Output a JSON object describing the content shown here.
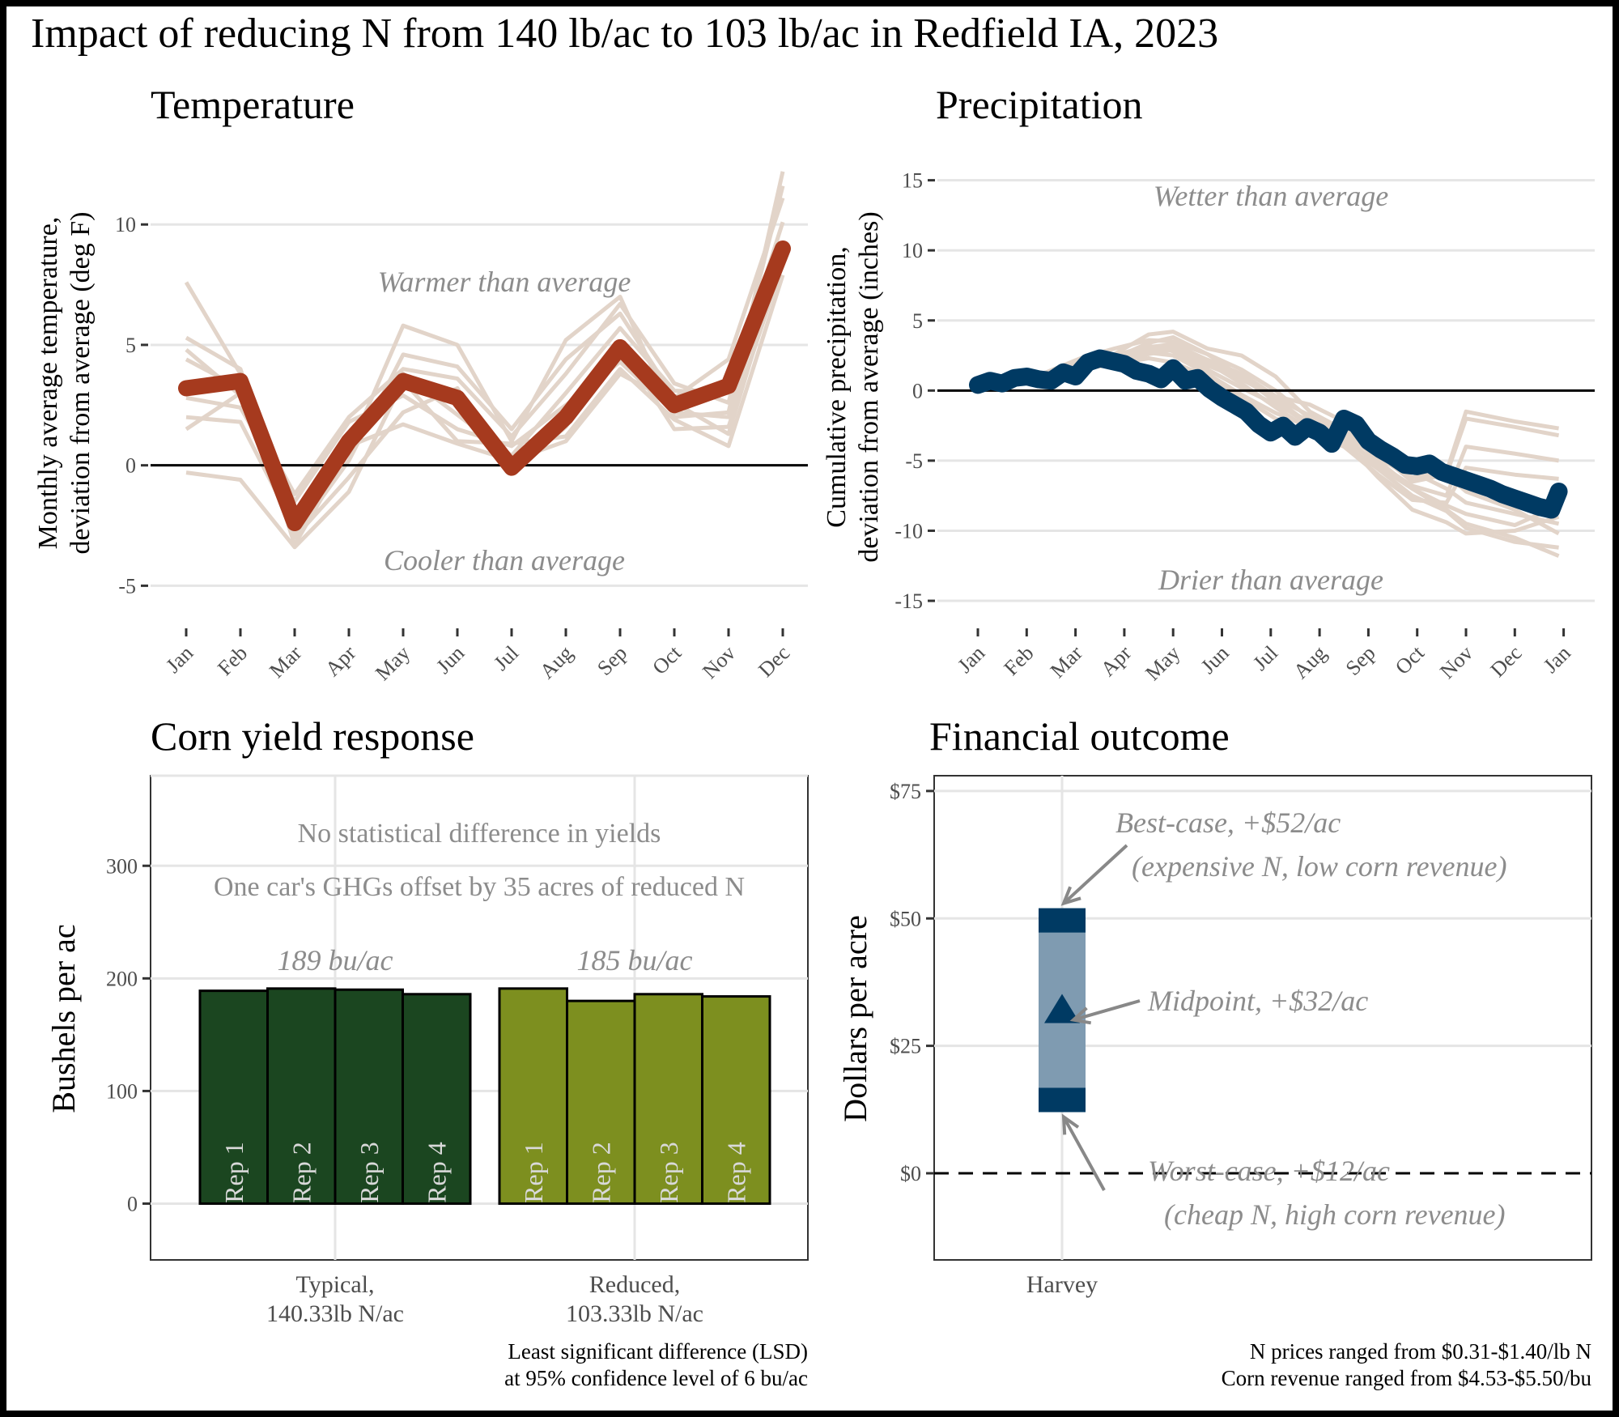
{
  "title": "Impact of reducing N from 140 lb/ac to 103 lb/ac in Redfield IA, 2023",
  "colors": {
    "temp_main": "#a63a1e",
    "historical": "#e2d4c9",
    "precip_main": "#003a63",
    "typical_bar": "#1b4620",
    "reduced_bar": "#7d8f1f",
    "range_band": "#7f9bb1",
    "range_ends": "#003a63",
    "annotation": "#8c8c8c"
  },
  "chart_data": [
    {
      "type": "line",
      "title": "Temperature",
      "ylabel_line1": "Monthly average temperature,",
      "ylabel_line2": "deviation from average (deg F)",
      "xlabel": "",
      "categories": [
        "Jan",
        "Feb",
        "Mar",
        "Apr",
        "May",
        "Jun",
        "Jul",
        "Aug",
        "Sep",
        "Oct",
        "Nov",
        "Dec"
      ],
      "ylim": [
        -6.5,
        13
      ],
      "yticks": [
        -5,
        0,
        5,
        10
      ],
      "annotations": {
        "upper": "Warmer than average",
        "lower": "Cooler than average"
      },
      "series": [
        {
          "values": [
            3.2,
            3.5,
            -2.4,
            1.0,
            3.5,
            2.8,
            -0.1,
            2.0,
            4.9,
            2.5,
            3.3,
            9.0
          ]
        }
      ],
      "historical": [
        [
          7.6,
          3.8,
          -3.3,
          0.6,
          5.8,
          5.0,
          1.0,
          5.2,
          7.0,
          2.0,
          2.2,
          12.2
        ],
        [
          5.3,
          4.0,
          -2.9,
          0.2,
          4.6,
          4.1,
          1.5,
          4.4,
          6.3,
          2.8,
          4.4,
          11.1
        ],
        [
          4.4,
          3.2,
          -2.0,
          1.3,
          3.8,
          2.1,
          0.4,
          3.0,
          5.7,
          3.1,
          3.0,
          10.1
        ],
        [
          2.8,
          2.4,
          -1.5,
          1.8,
          2.9,
          1.5,
          0.8,
          2.5,
          4.3,
          2.2,
          2.0,
          9.3
        ],
        [
          1.5,
          3.0,
          -3.0,
          -0.5,
          2.2,
          3.2,
          -0.3,
          1.6,
          5.0,
          1.5,
          1.6,
          8.4
        ],
        [
          -0.3,
          -0.6,
          -3.4,
          -1.1,
          3.5,
          1.0,
          0.9,
          1.2,
          4.0,
          1.9,
          0.8,
          7.9
        ],
        [
          4.8,
          2.9,
          -1.2,
          2.0,
          4.0,
          3.6,
          1.2,
          3.8,
          6.7,
          3.4,
          2.6,
          11.6
        ],
        [
          2.0,
          1.8,
          -2.6,
          0.8,
          1.7,
          0.9,
          0.2,
          1.0,
          3.8,
          2.6,
          1.3,
          8.8
        ]
      ]
    },
    {
      "type": "line",
      "title": "Precipitation",
      "ylabel_line1": "Cumulative precipitation,",
      "ylabel_line2": "deviation from average (inches)",
      "xlabel": "",
      "categories": [
        "Jan",
        "Feb",
        "Mar",
        "Apr",
        "May",
        "Jun",
        "Jul",
        "Aug",
        "Sep",
        "Oct",
        "Nov",
        "Dec",
        "Jan"
      ],
      "ylim": [
        -16.5,
        17
      ],
      "yticks": [
        -15,
        -10,
        -5,
        0,
        5,
        10,
        15
      ],
      "annotations": {
        "upper": "Wetter than average",
        "lower": "Drier than average"
      },
      "series": [
        {
          "x": [
            0,
            0.25,
            0.5,
            0.75,
            1.0,
            1.25,
            1.5,
            1.75,
            2.0,
            2.25,
            2.5,
            2.75,
            3.0,
            3.25,
            3.5,
            3.75,
            4.0,
            4.25,
            4.5,
            4.75,
            5.0,
            5.25,
            5.5,
            5.75,
            6.0,
            6.25,
            6.5,
            6.75,
            7.0,
            7.25,
            7.5,
            7.75,
            8.0,
            8.25,
            8.5,
            8.75,
            9.0,
            9.25,
            9.5,
            9.75,
            10.0,
            10.25,
            10.5,
            10.75,
            11.0,
            11.25,
            11.5,
            11.75,
            11.9
          ],
          "values": [
            0.4,
            0.7,
            0.5,
            0.9,
            1.0,
            0.8,
            0.7,
            1.3,
            1.0,
            2.0,
            2.3,
            2.1,
            1.9,
            1.4,
            1.2,
            0.8,
            1.6,
            0.7,
            0.9,
            0.1,
            -0.5,
            -1.0,
            -1.5,
            -2.4,
            -3.0,
            -2.5,
            -3.3,
            -2.6,
            -3.0,
            -3.8,
            -2.0,
            -2.4,
            -3.6,
            -4.2,
            -4.7,
            -5.3,
            -5.4,
            -5.2,
            -5.8,
            -6.1,
            -6.4,
            -6.7,
            -7.0,
            -7.4,
            -7.7,
            -8.0,
            -8.3,
            -8.5,
            -7.2
          ]
        }
      ],
      "historical": [
        [
          0.3,
          0.6,
          1.0,
          2.0,
          2.6,
          4.0,
          4.2,
          3.0,
          2.5,
          1.0,
          -1.5,
          -2.8,
          -5.0,
          -7.0,
          -8.5,
          -9.5,
          -10.5,
          -11.8
        ],
        [
          0.4,
          0.8,
          1.3,
          2.3,
          3.0,
          3.6,
          3.5,
          2.6,
          1.5,
          0.0,
          -2.0,
          -3.8,
          -5.6,
          -7.5,
          -8.6,
          -9.8,
          -10.8,
          -11.2
        ],
        [
          0.2,
          0.4,
          0.8,
          1.5,
          2.0,
          2.6,
          2.9,
          1.8,
          0.8,
          -0.5,
          -1.8,
          -2.9,
          -4.2,
          -5.8,
          -7.0,
          -8.0,
          -8.8,
          -9.5
        ],
        [
          0.5,
          0.7,
          1.1,
          1.8,
          2.4,
          3.1,
          3.3,
          2.2,
          1.2,
          -0.4,
          -1.0,
          -2.2,
          -3.8,
          -5.0,
          -6.0,
          -7.2,
          -8.5,
          -10.2
        ],
        [
          0.3,
          0.5,
          0.9,
          1.7,
          2.2,
          2.9,
          3.0,
          2.0,
          0.5,
          -1.2,
          -2.8,
          -2.6,
          -4.5,
          -6.5,
          -6.0,
          -2.0,
          -2.6,
          -3.2
        ],
        [
          0.4,
          0.6,
          1.2,
          1.9,
          2.5,
          3.2,
          2.8,
          1.5,
          0.2,
          -1.0,
          -2.2,
          -3.0,
          -4.8,
          -6.2,
          -5.8,
          -1.5,
          -2.2,
          -2.7
        ],
        [
          0.3,
          0.5,
          1.0,
          1.6,
          2.1,
          2.7,
          2.5,
          1.2,
          -0.3,
          -1.6,
          -2.6,
          -3.5,
          -5.2,
          -6.8,
          -7.5,
          -4.0,
          -4.5,
          -5.0
        ],
        [
          0.2,
          0.5,
          0.9,
          1.5,
          1.9,
          2.3,
          2.0,
          1.0,
          -0.5,
          -2.0,
          -3.0,
          -4.0,
          -6.0,
          -7.8,
          -8.0,
          -5.5,
          -6.0,
          -6.3
        ],
        [
          0.3,
          0.6,
          1.1,
          1.8,
          2.3,
          3.4,
          3.8,
          2.6,
          1.0,
          -0.8,
          -2.5,
          -3.6,
          -6.2,
          -8.5,
          -9.4,
          -10.2,
          -10.0,
          -9.0
        ],
        [
          0.4,
          0.7,
          1.0,
          1.6,
          2.2,
          3.0,
          3.1,
          2.1,
          0.9,
          -0.6,
          -2.4,
          -3.2,
          -5.4,
          -7.0,
          -8.2,
          -8.8,
          -9.6,
          -8.2
        ]
      ],
      "historical_x": [
        0.0,
        0.7,
        1.4,
        2.1,
        2.8,
        3.5,
        4.0,
        4.7,
        5.4,
        6.1,
        6.8,
        7.5,
        8.2,
        8.9,
        9.6,
        10.0,
        11.0,
        11.9
      ]
    },
    {
      "type": "bar",
      "title": "Corn yield response",
      "ylabel": "Bushels per ac",
      "ylim": [
        -50,
        380
      ],
      "yticks": [
        0,
        100,
        200,
        300
      ],
      "annotations": [
        "No statistical difference in yields",
        "One car's GHGs offset by 35 acres of reduced N"
      ],
      "groups": [
        {
          "label_line1": "Typical,",
          "label_line2": "140.33lb N/ac",
          "mean_label": "189 bu/ac",
          "reps": [
            "Rep 1",
            "Rep 2",
            "Rep 3",
            "Rep 4"
          ],
          "values": [
            189,
            191,
            190,
            186
          ]
        },
        {
          "label_line1": "Reduced,",
          "label_line2": "103.33lb N/ac",
          "mean_label": "185 bu/ac",
          "reps": [
            "Rep 1",
            "Rep 2",
            "Rep 3",
            "Rep 4"
          ],
          "values": [
            191,
            180,
            186,
            184
          ]
        }
      ],
      "footnote_line1": "Least significant difference (LSD)",
      "footnote_line2": "at 95% confidence level of 6 bu/ac"
    },
    {
      "type": "scatter",
      "title": "Financial outcome",
      "ylabel": "Dollars per acre",
      "ylim": [
        -17,
        78
      ],
      "yticks": [
        0,
        25,
        50,
        75
      ],
      "ytick_labels": [
        "$0",
        "$25",
        "$50",
        "$75"
      ],
      "categories": [
        "Harvey"
      ],
      "best_case": 52,
      "midpoint": 32,
      "worst_case": 12,
      "annotations": {
        "best_line1": "Best-case, +$52/ac",
        "best_line2": "(expensive N, low corn revenue)",
        "mid": "Midpoint, +$32/ac",
        "worst_line1": "Worst-case, +$12/ac",
        "worst_line2": "(cheap N,  high corn revenue)"
      },
      "footnote_line1": "N prices ranged from $0.31-$1.40/lb N",
      "footnote_line2": "Corn revenue ranged from $4.53-$5.50/bu"
    }
  ]
}
